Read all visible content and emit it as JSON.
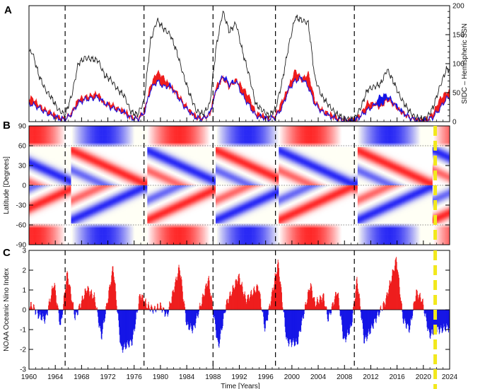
{
  "chart_data": [
    {
      "panel_label": "A",
      "type": "area",
      "ylabel": "SIDC – Hemispheric SSN",
      "y_ticks": [
        "0",
        "50",
        "100",
        "150",
        "200"
      ],
      "ylim": [
        0,
        200
      ],
      "xlim": [
        1960,
        2024
      ],
      "colors": {
        "north": "#ee1c1c",
        "south": "#1414e6",
        "total": "#222222"
      },
      "years": [
        1960,
        1961,
        1962,
        1963,
        1964,
        1965,
        1966,
        1967,
        1968,
        1969,
        1970,
        1971,
        1972,
        1973,
        1974,
        1975,
        1976,
        1977,
        1978,
        1979,
        1980,
        1981,
        1982,
        1983,
        1984,
        1985,
        1986,
        1987,
        1988,
        1989,
        1990,
        1991,
        1992,
        1993,
        1994,
        1995,
        1996,
        1997,
        1998,
        1999,
        2000,
        2001,
        2002,
        2003,
        2004,
        2005,
        2006,
        2007,
        2008,
        2009,
        2010,
        2011,
        2012,
        2013,
        2014,
        2015,
        2016,
        2017,
        2018,
        2019,
        2020,
        2021,
        2022,
        2023
      ],
      "series": [
        {
          "values": [
            120,
            80,
            55,
            40,
            20,
            12,
            45,
            100,
            110,
            108,
            106,
            80,
            72,
            55,
            45,
            17,
            12,
            35,
            140,
            175,
            160,
            150,
            120,
            80,
            46,
            18,
            13,
            30,
            130,
            190,
            155,
            170,
            120,
            80,
            30,
            20,
            10,
            22,
            68,
            130,
            180,
            175,
            170,
            75,
            45,
            30,
            16,
            8,
            4,
            4,
            25,
            55,
            60,
            65,
            90,
            68,
            42,
            24,
            10,
            5,
            6,
            25,
            60,
            90
          ]
        },
        {
          "values": [
            40,
            28,
            20,
            14,
            7,
            4,
            15,
            38,
            42,
            45,
            48,
            30,
            30,
            22,
            18,
            8,
            5,
            16,
            62,
            85,
            75,
            60,
            50,
            32,
            18,
            8,
            6,
            12,
            60,
            75,
            60,
            72,
            58,
            42,
            14,
            10,
            5,
            10,
            35,
            58,
            88,
            72,
            82,
            35,
            20,
            14,
            8,
            4,
            2,
            2,
            12,
            32,
            30,
            25,
            38,
            30,
            18,
            10,
            4,
            2,
            3,
            14,
            38,
            50
          ]
        },
        {
          "values": [
            30,
            24,
            16,
            11,
            6,
            3,
            14,
            32,
            38,
            40,
            42,
            32,
            24,
            20,
            16,
            6,
            4,
            14,
            55,
            70,
            60,
            62,
            45,
            28,
            16,
            6,
            5,
            14,
            54,
            80,
            65,
            70,
            45,
            28,
            10,
            8,
            4,
            8,
            24,
            56,
            70,
            76,
            60,
            30,
            18,
            11,
            6,
            3,
            2,
            2,
            10,
            20,
            28,
            44,
            45,
            32,
            20,
            10,
            4,
            2,
            2,
            8,
            22,
            40
          ]
        }
      ]
    },
    {
      "panel_label": "B",
      "type": "heatmap",
      "ylabel": "Latitude [Degrees]",
      "y_ticks": [
        "90",
        "60",
        "30",
        "0",
        "-30",
        "-60",
        "-90"
      ],
      "ylim": [
        -90,
        90
      ],
      "xlim": [
        1960,
        2024
      ],
      "colors": {
        "positive": "#e61e1e",
        "negative": "#1e1ee6"
      },
      "cycle_starts": [
        1966.5,
        1978,
        1988.5,
        1998,
        2010,
        2021.5
      ]
    },
    {
      "panel_label": "C",
      "type": "area",
      "ylabel": "NOAA Oceanic Nino Index",
      "xlabel": "Time [Years]",
      "y_ticks": [
        "-3",
        "-2",
        "-1",
        "0",
        "1",
        "2",
        "3"
      ],
      "ylim": [
        -3,
        3
      ],
      "xlim": [
        1960,
        2024
      ],
      "x_ticks": [
        "1960",
        "1964",
        "1968",
        "1972",
        "1976",
        "1980",
        "1984",
        "1988",
        "1992",
        "1996",
        "2000",
        "2004",
        "2008",
        "2012",
        "2016",
        "2020",
        "2024"
      ],
      "colors": {
        "positive": "#ee1c1c",
        "negative": "#1414e6"
      },
      "peaks": [
        [
          1960.5,
          0.2
        ],
        [
          1961.5,
          -0.3
        ],
        [
          1962.5,
          -0.5
        ],
        [
          1963.8,
          1.4
        ],
        [
          1964.8,
          -0.9
        ],
        [
          1965.8,
          1.9
        ],
        [
          1967.0,
          -0.4
        ],
        [
          1968.8,
          1.1
        ],
        [
          1970.0,
          0.6
        ],
        [
          1971.0,
          -1.4
        ],
        [
          1972.8,
          2.2
        ],
        [
          1974.0,
          -2.0
        ],
        [
          1975.7,
          -1.6
        ],
        [
          1976.9,
          0.8
        ],
        [
          1978.0,
          0.2
        ],
        [
          1979.0,
          0.0
        ],
        [
          1980.0,
          0.2
        ],
        [
          1981.0,
          -0.3
        ],
        [
          1982.9,
          2.2
        ],
        [
          1984.0,
          -0.8
        ],
        [
          1985.0,
          -1.0
        ],
        [
          1987.3,
          1.6
        ],
        [
          1988.8,
          -1.9
        ],
        [
          1990.0,
          0.3
        ],
        [
          1991.9,
          1.7
        ],
        [
          1993.0,
          0.5
        ],
        [
          1994.9,
          1.2
        ],
        [
          1995.9,
          -1.0
        ],
        [
          1997.9,
          2.4
        ],
        [
          1999.2,
          -1.6
        ],
        [
          2000.8,
          -1.7
        ],
        [
          2002.8,
          1.3
        ],
        [
          2003.5,
          0.3
        ],
        [
          2004.8,
          0.7
        ],
        [
          2005.5,
          -0.5
        ],
        [
          2006.9,
          1.0
        ],
        [
          2007.9,
          -1.6
        ],
        [
          2009.0,
          -0.9
        ],
        [
          2009.9,
          1.6
        ],
        [
          2011.0,
          -1.6
        ],
        [
          2012.0,
          -1.0
        ],
        [
          2013.0,
          -0.3
        ],
        [
          2014.2,
          0.4
        ],
        [
          2015.9,
          2.6
        ],
        [
          2016.9,
          -0.5
        ],
        [
          2017.9,
          -1.0
        ],
        [
          2018.9,
          0.9
        ],
        [
          2019.8,
          0.5
        ],
        [
          2020.9,
          -1.3
        ],
        [
          2021.9,
          -1.0
        ],
        [
          2022.8,
          -1.0
        ],
        [
          2023.4,
          -0.9
        ]
      ]
    }
  ],
  "shared": {
    "cycle_minima_years": [
      1965.5,
      1977.5,
      1988.0,
      1997.5,
      2009.5
    ],
    "highlight_year": 2021.8,
    "highlight_color": "#f2e81c"
  }
}
